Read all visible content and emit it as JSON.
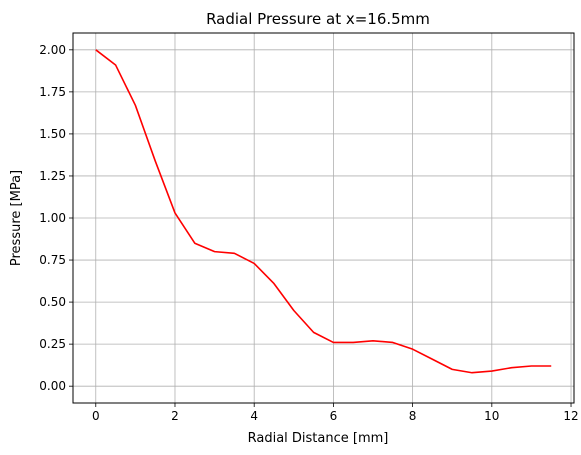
{
  "chart_data": {
    "type": "line",
    "title": "Radial Pressure at x=16.5mm",
    "xlabel": "Radial Distance [mm]",
    "ylabel": "Pressure [MPa]",
    "xlim": [
      -0.575,
      12.075
    ],
    "ylim": [
      -0.1,
      2.1
    ],
    "xticks": [
      0,
      2,
      4,
      6,
      8,
      10,
      12
    ],
    "xtick_labels": [
      "0",
      "2",
      "4",
      "6",
      "8",
      "10",
      "12"
    ],
    "yticks": [
      0.0,
      0.25,
      0.5,
      0.75,
      1.0,
      1.25,
      1.5,
      1.75,
      2.0
    ],
    "ytick_labels": [
      "0.00",
      "0.25",
      "0.50",
      "0.75",
      "1.00",
      "1.25",
      "1.50",
      "1.75",
      "2.00"
    ],
    "grid": true,
    "series": [
      {
        "color": "#ff0000",
        "x": [
          0,
          0.5,
          1.0,
          1.5,
          2.0,
          2.5,
          3.0,
          3.5,
          4.0,
          4.5,
          5.0,
          5.5,
          6.0,
          6.5,
          7.0,
          7.5,
          8.0,
          8.5,
          9.0,
          9.5,
          10.0,
          10.5,
          11.0,
          11.5
        ],
        "y": [
          2.0,
          1.91,
          1.67,
          1.34,
          1.03,
          0.85,
          0.8,
          0.79,
          0.73,
          0.61,
          0.45,
          0.32,
          0.26,
          0.26,
          0.27,
          0.26,
          0.22,
          0.16,
          0.1,
          0.08,
          0.09,
          0.11,
          0.12,
          0.12
        ]
      }
    ]
  }
}
